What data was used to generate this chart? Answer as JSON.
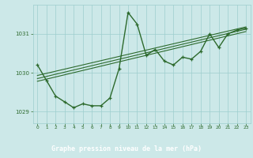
{
  "xlabel": "Graphe pression niveau de la mer (hPa)",
  "hours": [
    0,
    1,
    2,
    3,
    4,
    5,
    6,
    7,
    8,
    9,
    10,
    11,
    12,
    13,
    14,
    15,
    16,
    17,
    18,
    19,
    20,
    21,
    22,
    23
  ],
  "pressure": [
    1030.2,
    1029.8,
    1029.4,
    1029.25,
    1029.1,
    1029.2,
    1029.15,
    1029.15,
    1029.35,
    1030.1,
    1031.55,
    1031.25,
    1030.45,
    1030.6,
    1030.3,
    1030.2,
    1030.4,
    1030.35,
    1030.55,
    1031.0,
    1030.65,
    1031.0,
    1031.1,
    1031.15
  ],
  "ylim": [
    1028.7,
    1031.75
  ],
  "yticks": [
    1029,
    1030,
    1031
  ],
  "xticks": [
    0,
    1,
    2,
    3,
    4,
    5,
    6,
    7,
    8,
    9,
    10,
    11,
    12,
    13,
    14,
    15,
    16,
    17,
    18,
    19,
    20,
    21,
    22,
    23
  ],
  "line_color": "#2d6a2d",
  "marker_color": "#2d6a2d",
  "bg_color": "#cce8e8",
  "grid_color": "#9ecece",
  "text_color": "#2d6a2d",
  "label_bg_color": "#4a8a4a",
  "label_text_color": "#ffffff",
  "trend_lines": [
    {
      "x0": 0,
      "y0": 1029.93,
      "x1": 23,
      "y1": 1031.18
    },
    {
      "x0": 0,
      "y0": 1029.85,
      "x1": 23,
      "y1": 1031.12
    },
    {
      "x0": 0,
      "y0": 1029.78,
      "x1": 23,
      "y1": 1031.06
    }
  ]
}
